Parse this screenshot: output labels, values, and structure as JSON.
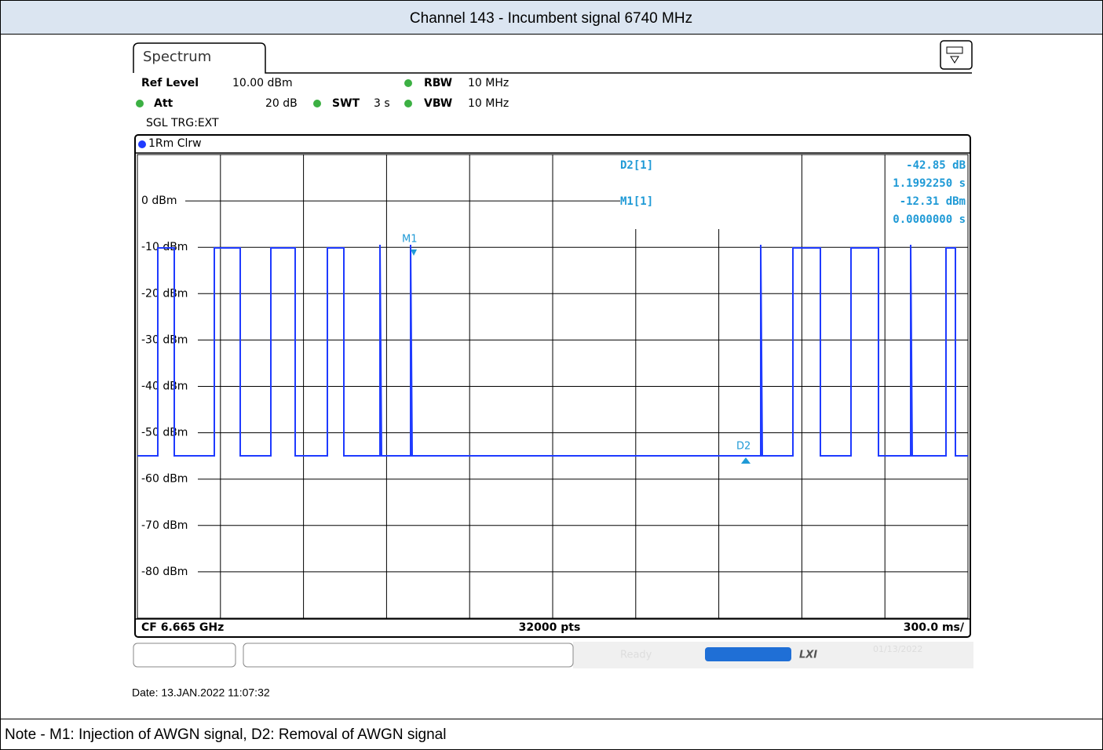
{
  "header": {
    "title": "Channel 143 - Incumbent signal 6740 MHz"
  },
  "screen": {
    "tab": "Spectrum",
    "settings": {
      "ref_level_label": "Ref Level",
      "ref_level": "10.00 dBm",
      "rbw_label": "RBW",
      "rbw": "10 MHz",
      "att_label": "Att",
      "att": "20 dB",
      "swt_label": "SWT",
      "swt": "3 s",
      "vbw_label": "VBW",
      "vbw": "10 MHz",
      "trigger": "SGL TRG:EXT"
    },
    "trace_label": "1Rm Clrw",
    "y_labels": [
      "0 dBm",
      "-10 dBm",
      "-20 dBm",
      "-30 dBm",
      "-40 dBm",
      "-50 dBm",
      "-60 dBm",
      "-70 dBm",
      "-80 dBm"
    ],
    "markers": {
      "d2_name": "D2[1]",
      "d2_level": "-42.85 dB",
      "d2_time": "1.1992250 s",
      "m1_name": "M1[1]",
      "m1_level": "-12.31 dBm",
      "m1_time": "0.0000000 s",
      "m1_tag": "M1",
      "d2_tag": "D2"
    },
    "bottom": {
      "center_freq": "CF 6.665 GHz",
      "points": "32000 pts",
      "sweep": "300.0 ms/"
    },
    "status": {
      "state": "Ready",
      "lxi": "LXI",
      "date": "01/13/2022"
    },
    "date": "Date: 13.JAN.2022  11:07:32"
  },
  "note": "Note - M1: Injection of AWGN  signal, D2: Removal of AWGN signal"
}
